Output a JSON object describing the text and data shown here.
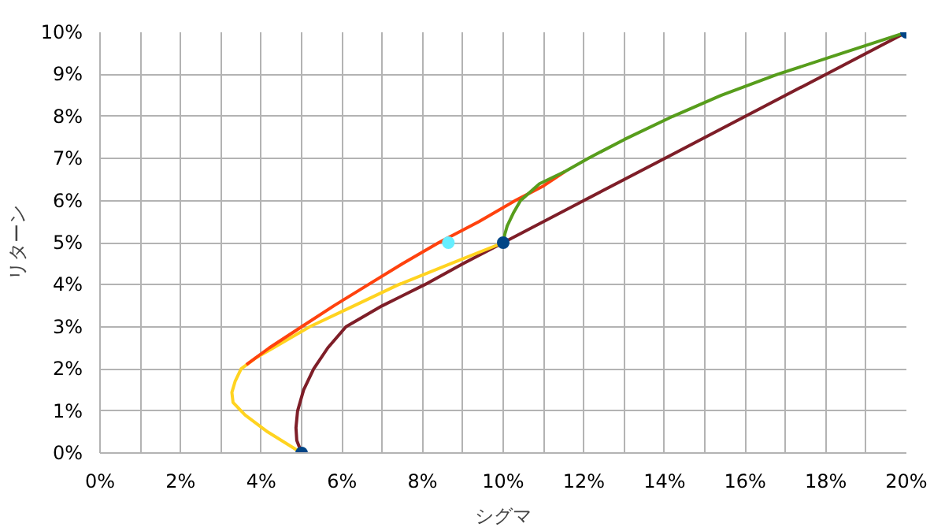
{
  "chart_data": {
    "type": "line",
    "xlabel": "シグマ",
    "ylabel": "リターン",
    "xlim": [
      0,
      20
    ],
    "ylim": [
      0,
      10
    ],
    "xticks": [
      {
        "value": 0,
        "label": "0%"
      },
      {
        "value": 1,
        "label": null
      },
      {
        "value": 2,
        "label": "2%"
      },
      {
        "value": 3,
        "label": null
      },
      {
        "value": 4,
        "label": "4%"
      },
      {
        "value": 5,
        "label": null
      },
      {
        "value": 6,
        "label": "6%"
      },
      {
        "value": 7,
        "label": null
      },
      {
        "value": 8,
        "label": "8%"
      },
      {
        "value": 9,
        "label": null
      },
      {
        "value": 10,
        "label": "10%"
      },
      {
        "value": 11,
        "label": null
      },
      {
        "value": 12,
        "label": "12%"
      },
      {
        "value": 13,
        "label": null
      },
      {
        "value": 14,
        "label": "14%"
      },
      {
        "value": 15,
        "label": null
      },
      {
        "value": 16,
        "label": "16%"
      },
      {
        "value": 17,
        "label": null
      },
      {
        "value": 18,
        "label": "18%"
      },
      {
        "value": 19,
        "label": null
      },
      {
        "value": 20,
        "label": "20%"
      }
    ],
    "yticks": [
      {
        "value": 0,
        "label": "0%"
      },
      {
        "value": 1,
        "label": "1%"
      },
      {
        "value": 2,
        "label": "2%"
      },
      {
        "value": 3,
        "label": "3%"
      },
      {
        "value": 4,
        "label": "4%"
      },
      {
        "value": 5,
        "label": "5%"
      },
      {
        "value": 6,
        "label": "6%"
      },
      {
        "value": 7,
        "label": "7%"
      },
      {
        "value": 8,
        "label": "8%"
      },
      {
        "value": 9,
        "label": "9%"
      },
      {
        "value": 10,
        "label": "10%"
      }
    ],
    "grid": true,
    "line_style": "solid",
    "series": [
      {
        "color": "#7e1e28",
        "x": [
          5.0,
          4.88,
          4.86,
          4.9,
          5.05,
          5.3,
          5.65,
          6.1,
          7.0,
          8.05,
          9.0,
          10.0,
          12.0,
          14.0,
          16.0,
          18.0,
          20.0
        ],
        "values": [
          0,
          0.3,
          0.6,
          1.0,
          1.5,
          2.0,
          2.5,
          3.0,
          3.5,
          4.0,
          4.5,
          5.0,
          6.0,
          7.0,
          8.0,
          9.0,
          10.0
        ]
      },
      {
        "color": "#ffd320",
        "x": [
          5.0,
          4.16,
          3.6,
          3.3,
          3.27,
          3.35,
          3.5,
          3.85,
          4.3,
          5.2,
          6.3,
          7.4,
          8.7,
          10.0
        ],
        "values": [
          0,
          0.5,
          0.9,
          1.2,
          1.44,
          1.7,
          2.0,
          2.25,
          2.5,
          3.0,
          3.5,
          4.0,
          4.5,
          5.0
        ]
      },
      {
        "color": "#ff420e",
        "x": [
          3.63,
          4.2,
          5.0,
          5.8,
          6.65,
          7.5,
          8.4,
          9.4,
          10.3,
          11.0,
          11.53
        ],
        "values": [
          2.1,
          2.5,
          3.0,
          3.5,
          4.0,
          4.5,
          5.0,
          5.5,
          6.0,
          6.35,
          6.69
        ]
      },
      {
        "color": "#579d1c",
        "x": [
          10.0,
          10.04,
          10.1,
          10.25,
          10.43,
          10.9,
          11.53,
          12.1,
          13.0,
          14.2,
          15.4,
          16.8,
          18.4,
          20.0
        ],
        "values": [
          5.0,
          5.2,
          5.4,
          5.7,
          6.0,
          6.4,
          6.69,
          7.0,
          7.45,
          8.0,
          8.5,
          9.0,
          9.5,
          10.0
        ]
      },
      {
        "type": "scatter",
        "color": "#004586",
        "marker": "circle",
        "x": [
          5,
          10,
          20
        ],
        "values": [
          0,
          5,
          10
        ]
      },
      {
        "type": "scatter",
        "color": "#66eeff",
        "marker": "circle",
        "x": [
          8.64
        ],
        "values": [
          5.0
        ]
      }
    ]
  }
}
